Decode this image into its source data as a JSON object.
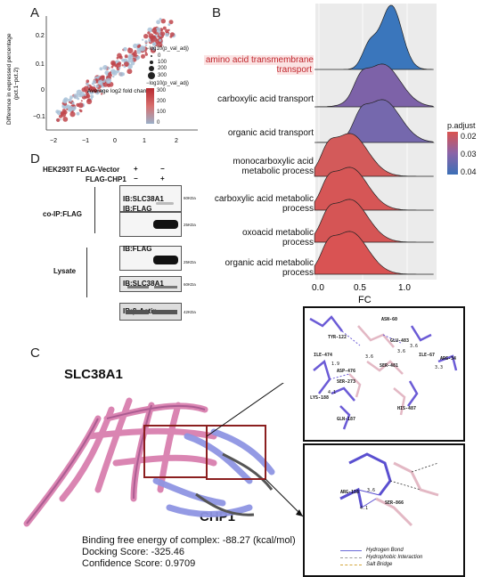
{
  "panels": {
    "A": "A",
    "B": "B",
    "C": "C",
    "D": "D"
  },
  "panelA": {
    "ylabel": "Difference in expressed percentage\n(pct.1−pct.2)",
    "xlabel": "Average log2 fold change",
    "xticks": [
      "−2",
      "−1",
      "0",
      "1",
      "2"
    ],
    "yticks": [
      "0.2",
      "0.1",
      "0",
      "−0.1",
      "−0.2"
    ],
    "legend_size_title": "−log10(p_val_adj)",
    "legend_size_values": [
      "0",
      "100",
      "200",
      "300"
    ],
    "legend_color_title": "−log10(p_val_adj)",
    "legend_color_values": [
      "300",
      "200",
      "100",
      "0"
    ]
  },
  "chart_data": {
    "type": "ridgeline",
    "xlabel": "FC",
    "xticks": [
      "0.0",
      "0.5",
      "1.0"
    ],
    "xlim": [
      -0.1,
      1.3
    ],
    "categories": [
      "amino acid transmembrane transport",
      "carboxylic acid transport",
      "organic acid transport",
      "monocarboxylic acid metabolic process",
      "carboxylic acid metabolic process",
      "oxoacid metabolic process",
      "organic acid metabolic process"
    ],
    "peak_fc": [
      0.82,
      0.72,
      0.72,
      0.35,
      0.35,
      0.35,
      0.35
    ],
    "p_adjust": [
      0.04,
      0.035,
      0.033,
      0.02,
      0.02,
      0.02,
      0.02
    ],
    "legend_title": "p.adjust",
    "legend_values": [
      "0.02",
      "0.03",
      "0.04"
    ],
    "legend_colors": [
      "#d9534f",
      "#8a64a8",
      "#3b6fb6"
    ]
  },
  "panelB_labels": [
    {
      "text": "amino acid transmembrane\ntransport",
      "highlight": true
    },
    {
      "text": "carboxylic acid transport",
      "highlight": false
    },
    {
      "text": "organic acid transport",
      "highlight": false
    },
    {
      "text": "monocarboxylic acid\nmetabolic process",
      "highlight": false
    },
    {
      "text": "carboxylic acid metabolic\nprocess",
      "highlight": false
    },
    {
      "text": "oxoacid metabolic\nprocess",
      "highlight": false
    },
    {
      "text": "organic acid metabolic\nprocess",
      "highlight": false
    }
  ],
  "panelD": {
    "row1_label": "HEK293T  FLAG-Vector",
    "row2_label": "FLAG-CHP1",
    "row1_marks": [
      "+",
      "−"
    ],
    "row2_marks": [
      "−",
      "+"
    ],
    "coip_label": "co-IP:FLAG",
    "lysate_label": "Lysate",
    "blots": [
      {
        "label": "IB:SLC38A1",
        "kda": "60KDa"
      },
      {
        "label": "IB:FLAG",
        "kda": "25KDa"
      },
      {
        "label": "IB:FLAG",
        "kda": "25KDa"
      },
      {
        "label": "IB:SLC38A1",
        "kda": "60KDa"
      },
      {
        "label": "IB:β-Actin",
        "kda": "42KDa"
      }
    ]
  },
  "panelC": {
    "protein1": "SLC38A1",
    "protein2": "CHP1",
    "binding_energy": "Binding free energy of complex: -88.27 (kcal/mol)",
    "docking_score": "Docking Score: -325.46",
    "confidence_score": "Confidence Score: 0.9709",
    "top_residues": [
      "ASN-60",
      "TYR-122",
      "GLU-483",
      "ILE-474",
      "ILE-67",
      "ARG-34",
      "SER-481",
      "ASP-476",
      "SER-273",
      "LYS-188",
      "HIS-487",
      "GLN-187"
    ],
    "top_distances": [
      "3.6",
      "3.6",
      "3.3",
      "3.6",
      "1.9",
      "4.1"
    ],
    "bottom_residues": [
      "ARG-158",
      "SER-866"
    ],
    "bottom_distances": [
      "3.6",
      "4.1"
    ],
    "legend": [
      "Hydrogen Bond",
      "Hydrophobic Interaction",
      "Salt Bridge"
    ],
    "legend_colors": [
      "#6a6ad8",
      "#9a9a9a",
      "#d4a63a"
    ]
  }
}
